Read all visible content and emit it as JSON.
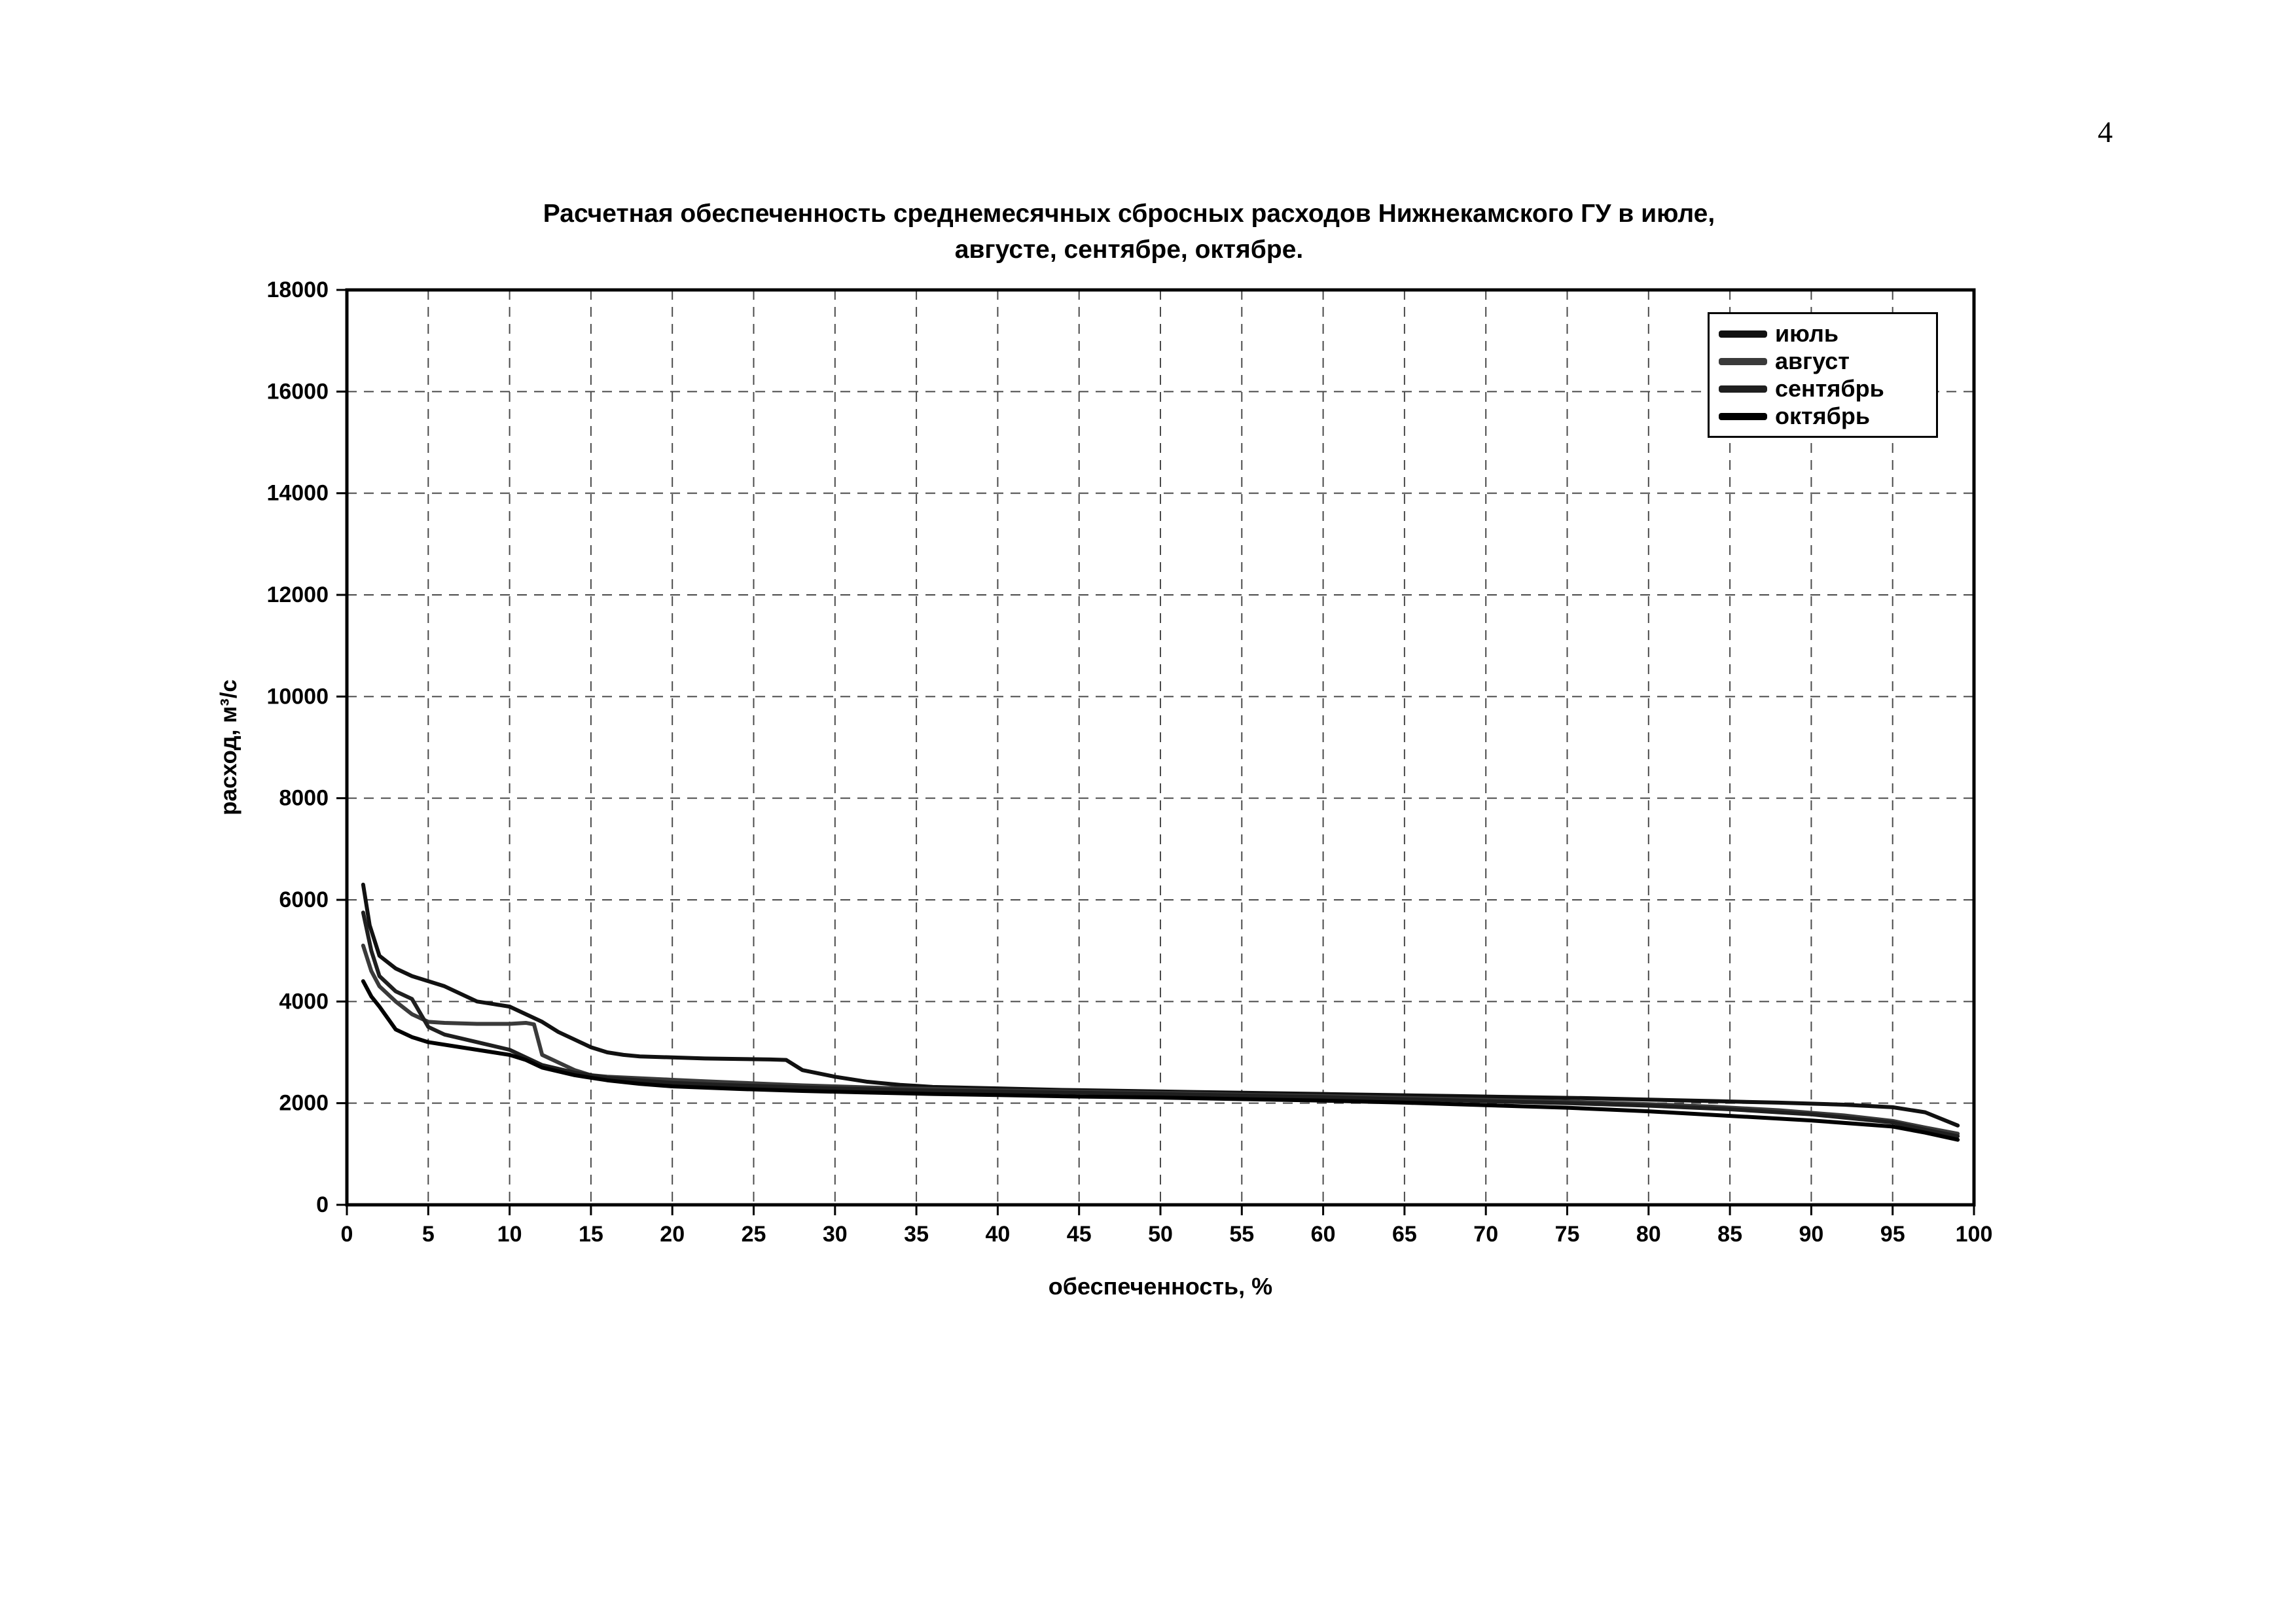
{
  "page": {
    "number": "4"
  },
  "chart_data": {
    "type": "line",
    "title_line1": "Расчетная обеспеченность среднемесячных сбросных расходов Нижнекамского ГУ в июле,",
    "title_line2": "августе, сентябре, октябре.",
    "xlabel": "обеспеченность, %",
    "ylabel": "расход, м³/с",
    "xlim": [
      0,
      100
    ],
    "ylim": [
      0,
      18000
    ],
    "xticks": [
      0,
      5,
      10,
      15,
      20,
      25,
      30,
      35,
      40,
      45,
      50,
      55,
      60,
      65,
      70,
      75,
      80,
      85,
      90,
      95,
      100
    ],
    "yticks": [
      0,
      2000,
      4000,
      6000,
      8000,
      10000,
      12000,
      14000,
      16000,
      18000
    ],
    "grid": "dashed-both-axes",
    "legend_position": "top-right-inside",
    "series": [
      {
        "name": "июль",
        "color": "#111111",
        "x": [
          1,
          1.4,
          2,
          3,
          4,
          5,
          6,
          7,
          8,
          9,
          10,
          11,
          12,
          13,
          14,
          15,
          16,
          17,
          18,
          20,
          22,
          24,
          26,
          27,
          28,
          30,
          32,
          34,
          36,
          40,
          44,
          48,
          52,
          56,
          60,
          64,
          68,
          72,
          76,
          80,
          84,
          88,
          92,
          95,
          97,
          99
        ],
        "y": [
          6300,
          5500,
          4900,
          4650,
          4500,
          4400,
          4300,
          4150,
          4000,
          3950,
          3900,
          3750,
          3600,
          3400,
          3250,
          3100,
          3000,
          2950,
          2920,
          2900,
          2880,
          2870,
          2860,
          2850,
          2650,
          2520,
          2420,
          2360,
          2320,
          2290,
          2260,
          2240,
          2220,
          2200,
          2180,
          2160,
          2140,
          2120,
          2100,
          2070,
          2040,
          2010,
          1970,
          1920,
          1820,
          1560
        ]
      },
      {
        "name": "август",
        "color": "#3a3a3a",
        "x": [
          1,
          1.5,
          2,
          3,
          4,
          5,
          6,
          7,
          8,
          9,
          10,
          11,
          11.5,
          12,
          13,
          14,
          15,
          16,
          18,
          20,
          22,
          25,
          28,
          30,
          33,
          36,
          40,
          44,
          48,
          52,
          56,
          60,
          64,
          68,
          72,
          76,
          80,
          84,
          88,
          92,
          95,
          97,
          99
        ],
        "y": [
          5100,
          4600,
          4300,
          4000,
          3750,
          3600,
          3580,
          3570,
          3560,
          3560,
          3560,
          3580,
          3550,
          2950,
          2800,
          2650,
          2550,
          2520,
          2490,
          2460,
          2430,
          2390,
          2350,
          2330,
          2300,
          2280,
          2250,
          2230,
          2210,
          2190,
          2160,
          2140,
          2110,
          2080,
          2050,
          2020,
          1980,
          1930,
          1860,
          1760,
          1650,
          1520,
          1400
        ]
      },
      {
        "name": "сентябрь",
        "color": "#1f1f1f",
        "x": [
          1,
          1.5,
          2,
          3,
          4,
          5,
          6,
          8,
          10,
          12,
          14,
          16,
          18,
          20,
          23,
          26,
          30,
          34,
          38,
          42,
          46,
          50,
          55,
          60,
          65,
          70,
          75,
          80,
          85,
          90,
          95,
          97,
          99
        ],
        "y": [
          5750,
          5000,
          4500,
          4200,
          4050,
          3500,
          3350,
          3200,
          3050,
          2750,
          2600,
          2500,
          2450,
          2400,
          2360,
          2330,
          2290,
          2260,
          2240,
          2220,
          2200,
          2180,
          2150,
          2120,
          2080,
          2040,
          2000,
          1950,
          1880,
          1780,
          1620,
          1480,
          1350
        ]
      },
      {
        "name": "октябрь",
        "color": "#000000",
        "x": [
          1,
          1.5,
          2,
          3,
          4,
          5,
          7,
          9,
          10,
          11,
          12,
          14,
          16,
          18,
          20,
          24,
          28,
          32,
          36,
          40,
          45,
          50,
          55,
          60,
          65,
          70,
          75,
          80,
          85,
          90,
          95,
          97,
          99
        ],
        "y": [
          4400,
          4100,
          3900,
          3450,
          3300,
          3200,
          3100,
          3000,
          2950,
          2850,
          2700,
          2550,
          2450,
          2380,
          2330,
          2280,
          2240,
          2210,
          2180,
          2160,
          2130,
          2110,
          2080,
          2050,
          2010,
          1960,
          1910,
          1840,
          1750,
          1660,
          1540,
          1420,
          1280
        ]
      }
    ]
  }
}
